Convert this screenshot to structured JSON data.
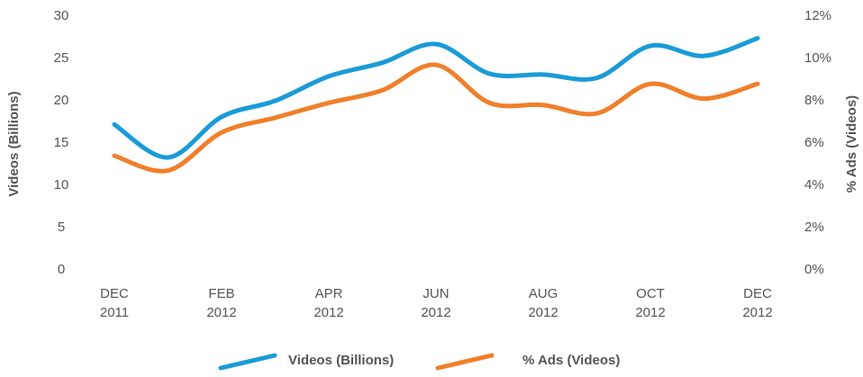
{
  "chart_data": {
    "type": "line",
    "categories": [
      [
        "DEC",
        "2011"
      ],
      null,
      [
        "FEB",
        "2012"
      ],
      null,
      [
        "APR",
        "2012"
      ],
      null,
      [
        "JUN",
        "2012"
      ],
      null,
      [
        "AUG",
        "2012"
      ],
      null,
      [
        "OCT",
        "2012"
      ],
      null,
      [
        "DEC",
        "2012"
      ]
    ],
    "ylabel": "Videos (Billions)",
    "y2label": "% Ads (Videos)",
    "ylim": [
      0,
      30
    ],
    "yticks": [
      0,
      5,
      10,
      15,
      20,
      25,
      30
    ],
    "y2lim": [
      0,
      12
    ],
    "y2ticks": [
      {
        "value": 0,
        "label": "0%"
      },
      {
        "value": 2,
        "label": "2%"
      },
      {
        "value": 4,
        "label": "4%"
      },
      {
        "value": 6,
        "label": "6%"
      },
      {
        "value": 8,
        "label": "8%"
      },
      {
        "value": 10,
        "label": "10%"
      },
      {
        "value": 12,
        "label": "12%"
      }
    ],
    "grid": false,
    "legend": "bottom",
    "series": [
      {
        "name": "Videos (Billions)",
        "color": "#1a9bd7",
        "values": [
          17.2,
          13.3,
          18.1,
          20,
          22.9,
          24.5,
          26.7,
          23.2,
          23.1,
          22.7,
          26.5,
          25.3,
          27.4
        ]
      },
      {
        "name": "% Ads (Videos)",
        "color": "#f07f2a",
        "axis": "y2",
        "values": [
          5.4,
          4.7,
          6.5,
          7.2,
          7.9,
          8.5,
          9.7,
          7.9,
          7.8,
          7.4,
          8.8,
          8.1,
          8.8
        ]
      }
    ]
  }
}
